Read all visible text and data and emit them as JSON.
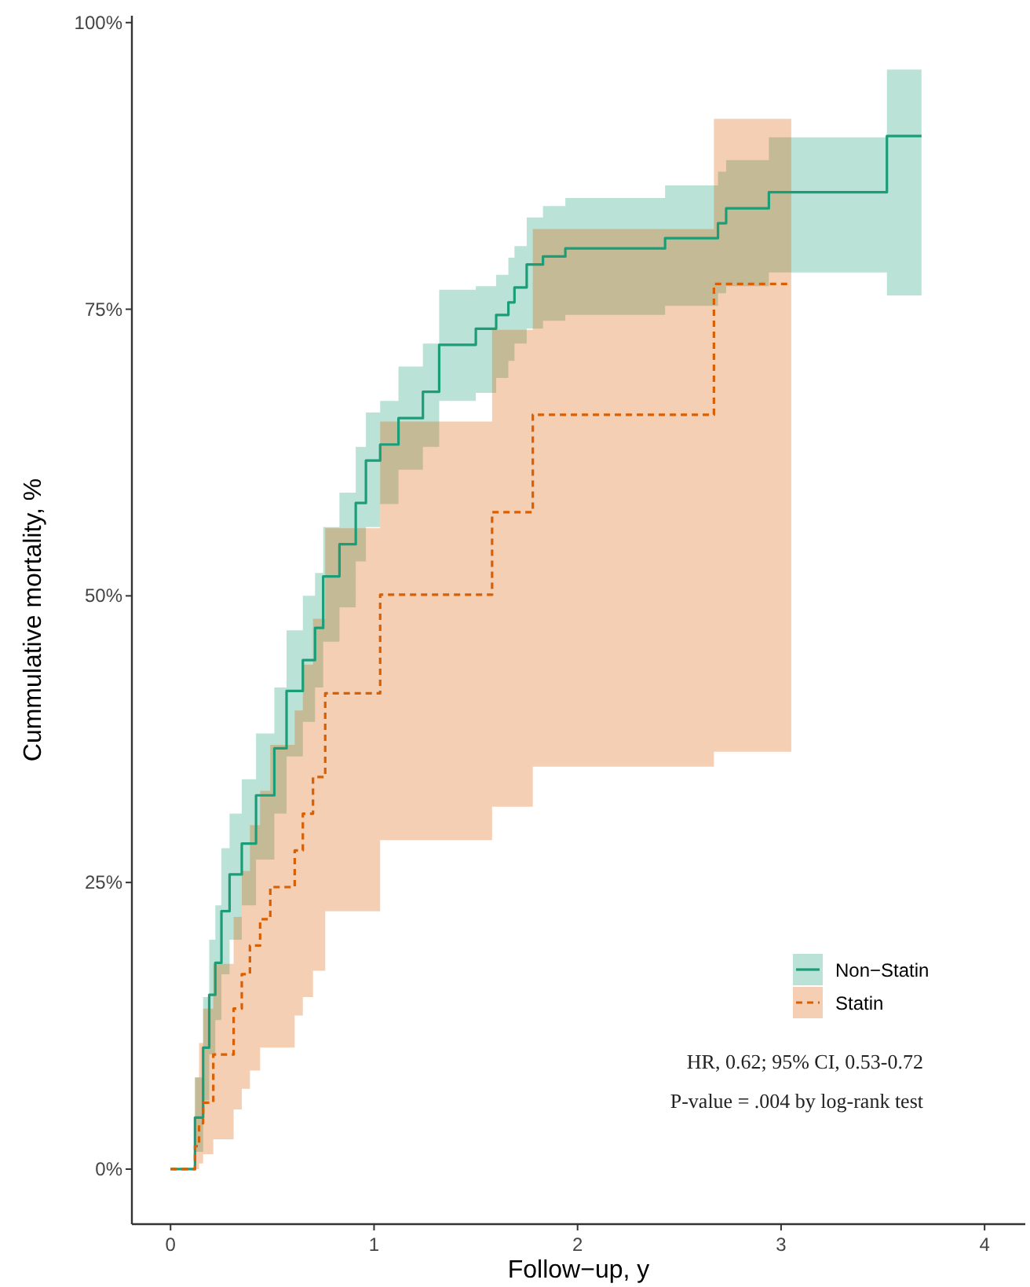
{
  "chart_data": {
    "type": "step",
    "xlabel": "Follow−up, y",
    "ylabel": "Cummulative mortality, %",
    "xlim": [
      -0.19,
      4.2
    ],
    "xticks": [
      0,
      1,
      2,
      3,
      4
    ],
    "ylim": [
      -4.8,
      100.6
    ],
    "yticks": [
      {
        "value": 0,
        "label": "0%"
      },
      {
        "value": 25,
        "label": "25%"
      },
      {
        "value": 50,
        "label": "50%"
      },
      {
        "value": 75,
        "label": "75%"
      },
      {
        "value": 100,
        "label": "100%"
      }
    ],
    "grid": false,
    "legend": "bottom right",
    "series": [
      {
        "name": "Non−Statin",
        "color": "#1b9e77",
        "line_style": "solid",
        "x": [
          0,
          0.09,
          0.12,
          0.16,
          0.19,
          0.22,
          0.25,
          0.29,
          0.35,
          0.42,
          0.51,
          0.57,
          0.65,
          0.71,
          0.75,
          0.83,
          0.91,
          0.96,
          1.03,
          1.12,
          1.24,
          1.32,
          1.5,
          1.6,
          1.66,
          1.69,
          1.75,
          1.83,
          1.94,
          2.43,
          2.69,
          2.73,
          2.94,
          3.52,
          3.69
        ],
        "values": [
          0,
          0,
          4.5,
          10.6,
          15.2,
          18,
          22.5,
          25.7,
          28.4,
          32.6,
          36.7,
          41.7,
          44.4,
          47.2,
          51.7,
          54.5,
          58.1,
          61.8,
          63.2,
          65.5,
          67.8,
          71.9,
          73.3,
          74.5,
          75.6,
          76.9,
          78.9,
          79.6,
          80.3,
          81.2,
          82.5,
          83.8,
          85.2,
          90.1,
          90.1
        ],
        "lower": [
          0,
          0,
          1.5,
          6,
          10,
          13,
          17,
          20,
          23,
          27,
          31,
          36,
          39,
          42,
          46,
          49,
          53,
          56,
          58,
          61,
          63,
          67,
          67.7,
          69,
          70.5,
          72,
          73.3,
          74,
          74.5,
          75.3,
          76.4,
          77,
          78.2,
          76.2,
          76.2
        ],
        "upper": [
          0,
          0,
          8,
          15,
          20,
          23,
          28,
          31,
          34,
          38,
          42,
          47,
          50,
          52,
          56,
          59,
          63,
          66,
          67,
          70,
          72,
          76.7,
          77,
          78,
          79.5,
          80.5,
          83,
          84,
          84.7,
          85.8,
          87,
          88,
          90,
          95.9,
          95.9
        ]
      },
      {
        "name": "Statin",
        "color": "#d95f02",
        "line_style": "dashed",
        "x": [
          0,
          0.12,
          0.14,
          0.16,
          0.21,
          0.31,
          0.35,
          0.39,
          0.44,
          0.49,
          0.61,
          0.65,
          0.7,
          0.76,
          1.03,
          1.58,
          1.78,
          2.67,
          3.05
        ],
        "values": [
          0,
          2,
          4,
          5.8,
          10,
          14,
          17,
          19.5,
          21.8,
          24.6,
          27.8,
          31,
          34.2,
          41.5,
          50.1,
          57.3,
          65.8,
          77.2,
          77.2
        ],
        "lower": [
          0,
          0,
          0.5,
          1.3,
          2.6,
          5.2,
          7,
          8.6,
          10.6,
          10.6,
          13.4,
          15,
          17.3,
          22.5,
          28.7,
          31.6,
          35.1,
          36.4,
          36.4
        ],
        "upper": [
          0,
          8,
          11,
          14,
          17.9,
          22,
          26,
          30,
          33,
          37,
          40,
          44,
          48,
          55.9,
          65.2,
          73.2,
          82,
          91.6,
          91.6
        ]
      }
    ],
    "annotations": [
      "HR, 0.62; 95% CI, 0.53-0.72",
      "P-value = .004 by log-rank test"
    ]
  }
}
